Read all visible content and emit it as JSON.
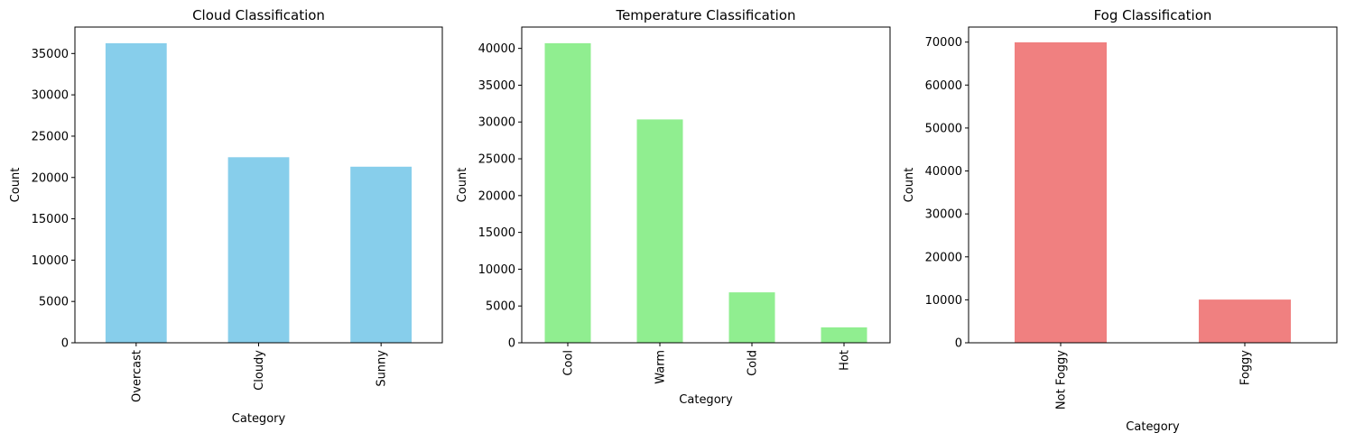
{
  "chart_data": [
    {
      "type": "bar",
      "title": "Cloud Classification",
      "xlabel": "Category",
      "ylabel": "Count",
      "categories": [
        "Overcast",
        "Cloudy",
        "Sunny"
      ],
      "values": [
        36250,
        22450,
        21300
      ],
      "ylim": [
        0,
        38200
      ],
      "yticks": [
        0,
        5000,
        10000,
        15000,
        20000,
        25000,
        30000,
        35000
      ],
      "color": "#87ceeb",
      "grid": false
    },
    {
      "type": "bar",
      "title": "Temperature Classification",
      "xlabel": "Category",
      "ylabel": "Count",
      "categories": [
        "Cool",
        "Warm",
        "Cold",
        "Hot"
      ],
      "values": [
        40700,
        30350,
        6850,
        2100
      ],
      "ylim": [
        0,
        42900
      ],
      "yticks": [
        0,
        5000,
        10000,
        15000,
        20000,
        25000,
        30000,
        35000,
        40000
      ],
      "color": "#90ee90",
      "grid": false
    },
    {
      "type": "bar",
      "title": "Fog Classification",
      "xlabel": "Category",
      "ylabel": "Count",
      "categories": [
        "Not Foggy",
        "Foggy"
      ],
      "values": [
        69950,
        10050
      ],
      "ylim": [
        0,
        73500
      ],
      "yticks": [
        0,
        10000,
        20000,
        30000,
        40000,
        50000,
        60000,
        70000
      ],
      "color": "#f08080",
      "grid": false
    }
  ]
}
